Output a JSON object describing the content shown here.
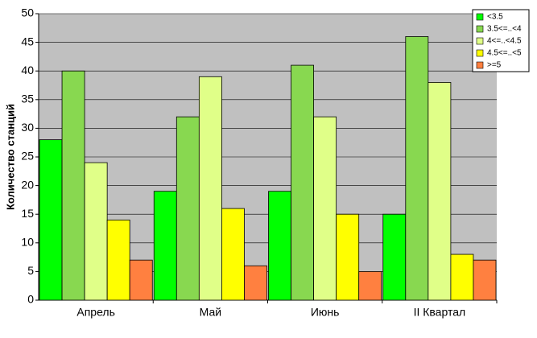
{
  "chart_data": {
    "type": "bar",
    "y_label": "Количество станций",
    "categories": [
      "Апрель",
      "Май",
      "Июнь",
      "II Квартал"
    ],
    "series": [
      {
        "name": "<3.5",
        "color": "#00ff00",
        "values": [
          28,
          19,
          19,
          15
        ]
      },
      {
        "name": "3.5<=..<4",
        "color": "#88d850",
        "values": [
          40,
          32,
          41,
          46
        ]
      },
      {
        "name": "4<=..<4.5",
        "color": "#e0ff88",
        "values": [
          24,
          39,
          32,
          38
        ]
      },
      {
        "name": "4.5<=..<5",
        "color": "#ffff00",
        "values": [
          14,
          16,
          15,
          8
        ]
      },
      {
        "name": ">=5",
        "color": "#ff8040",
        "values": [
          7,
          6,
          5,
          7
        ]
      }
    ],
    "ylim": [
      0,
      50
    ],
    "yticks": [
      0,
      5,
      10,
      15,
      20,
      25,
      30,
      35,
      40,
      45,
      50
    ],
    "grid": true,
    "legend": "top-right"
  }
}
